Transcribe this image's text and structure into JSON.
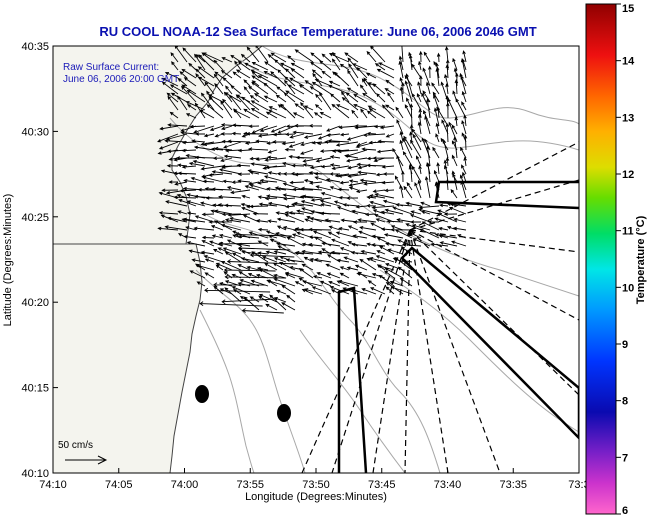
{
  "title": "RU COOL  NOAA-12  Sea Surface Temperature:  June 06, 2006 2046 GMT",
  "inset": {
    "line1": "Raw Surface Current:",
    "line2": "June 06, 2006 20:00 GMT"
  },
  "axes": {
    "xlabel": "Longitude (Degrees:Minutes)",
    "ylabel": "Latitude (Degrees:Minutes)",
    "xticks": [
      "74:10",
      "74:05",
      "74:00",
      "73:55",
      "73:50",
      "73:45",
      "73:40",
      "73:35",
      "73:3"
    ],
    "yticks": [
      "40:35",
      "40:30",
      "40:25",
      "40:20",
      "40:15",
      "40:10"
    ]
  },
  "scale_label": "50 cm/s",
  "colorbar": {
    "label": "Temperature (°C)",
    "ticks": [
      "15",
      "14",
      "13",
      "12",
      "11",
      "10",
      "9",
      "8",
      "7",
      "6"
    ],
    "min": 6,
    "max": 15
  },
  "colors": {
    "title": "#0a10b0",
    "inset": "#1a1ab8",
    "land": "#f4f4ee",
    "contour": "#a8a8a8",
    "vector": "#000000"
  },
  "map": {
    "lon_range": [
      "74:10 W",
      "73:30 W"
    ],
    "lat_range": [
      "40:10 N",
      "40:35 N"
    ],
    "vector_count_estimate": 640,
    "features": [
      "coastline",
      "bathymetry-contours",
      "current-vectors",
      "shipping-channel-outlines",
      "dashed-radial-lines",
      "buoy-markers"
    ]
  }
}
